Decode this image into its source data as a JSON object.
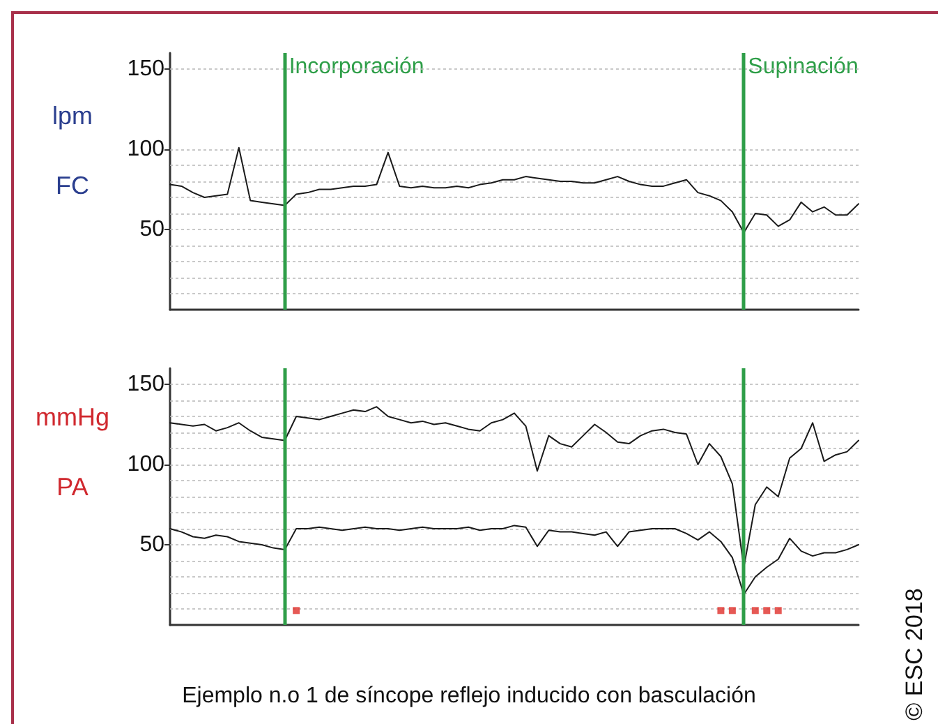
{
  "chart_data": [
    {
      "type": "line",
      "ylabel": "lpm\nFC",
      "ylim": [
        0,
        160
      ],
      "categories": [
        null,
        null,
        null,
        null,
        null,
        null,
        null,
        null,
        null,
        null,
        null,
        null,
        null,
        null,
        null,
        null,
        null,
        null,
        null,
        null,
        null,
        null,
        null,
        null,
        null,
        null,
        null,
        null,
        null,
        null,
        null,
        null,
        null,
        null,
        null,
        null,
        null,
        null,
        null,
        null,
        null,
        null,
        null,
        null,
        null,
        null,
        null,
        null,
        null,
        null,
        null,
        null,
        null,
        null,
        null,
        null,
        null,
        null,
        null,
        null,
        null
      ],
      "yticks": [
        {
          "value": 10,
          "label": null
        },
        {
          "value": 20,
          "label": null
        },
        {
          "value": 30,
          "label": null
        },
        {
          "value": 40,
          "label": null
        },
        50,
        {
          "value": 60,
          "label": null
        },
        {
          "value": 70,
          "label": null
        },
        {
          "value": 80,
          "label": null
        },
        {
          "value": 90,
          "label": null
        },
        100,
        150
      ],
      "grid": "y",
      "marker": "none",
      "line_style": "solid",
      "annotations": [
        "Incorporación",
        "Supinación"
      ],
      "series": [
        {
          "color": "#1a1a1a",
          "values": [
            78,
            77,
            73,
            70,
            71,
            72,
            101,
            68,
            67,
            66,
            65,
            72,
            73,
            75,
            75,
            76,
            77,
            77,
            78,
            98,
            77,
            76,
            77,
            76,
            76,
            77,
            76,
            78,
            79,
            81,
            81,
            83,
            82,
            81,
            80,
            80,
            79,
            79,
            81,
            83,
            80,
            78,
            77,
            77,
            79,
            81,
            73,
            71,
            68,
            61,
            48,
            60,
            59,
            52,
            56,
            67,
            61,
            64,
            59,
            59,
            66
          ]
        }
      ]
    },
    {
      "type": "line",
      "ylabel": "mmHg\nPA",
      "ylim": [
        0,
        160
      ],
      "categories": [
        null,
        null,
        null,
        null,
        null,
        null,
        null,
        null,
        null,
        null,
        null,
        null,
        null,
        null,
        null,
        null,
        null,
        null,
        null,
        null,
        null,
        null,
        null,
        null,
        null,
        null,
        null,
        null,
        null,
        null,
        null,
        null,
        null,
        null,
        null,
        null,
        null,
        null,
        null,
        null,
        null,
        null,
        null,
        null,
        null,
        null,
        null,
        null,
        null,
        null,
        null,
        null,
        null,
        null,
        null,
        null,
        null,
        null,
        null,
        null,
        null
      ],
      "yticks": [
        {
          "value": 10,
          "label": null
        },
        {
          "value": 20,
          "label": null
        },
        {
          "value": 30,
          "label": null
        },
        {
          "value": 40,
          "label": null
        },
        50,
        {
          "value": 60,
          "label": null
        },
        {
          "value": 70,
          "label": null
        },
        {
          "value": 80,
          "label": null
        },
        {
          "value": 90,
          "label": null
        },
        100,
        {
          "value": 110,
          "label": null
        },
        {
          "value": 120,
          "label": null
        },
        {
          "value": 130,
          "label": null
        },
        {
          "value": 140,
          "label": null
        },
        150
      ],
      "grid": "y",
      "marker": "none",
      "line_style": "solid",
      "annotations": [
        "Ejemplo n.o 1 de síncope reflejo inducido con basculación",
        "© ESC 2018"
      ],
      "series": [
        {
          "color": "#1a1a1a",
          "values": [
            126,
            125,
            124,
            125,
            121,
            123,
            126,
            121,
            117,
            116,
            115,
            130,
            129,
            128,
            130,
            132,
            134,
            133,
            136,
            130,
            128,
            126,
            127,
            125,
            126,
            124,
            122,
            121,
            126,
            128,
            132,
            124,
            96,
            118,
            113,
            111,
            118,
            125,
            120,
            114,
            113,
            118,
            121,
            122,
            120,
            119,
            100,
            113,
            105,
            88,
            36,
            75,
            86,
            80,
            104,
            110,
            126,
            102,
            106,
            108,
            115
          ]
        },
        {
          "color": "#1a1a1a",
          "values": [
            60,
            58,
            55,
            54,
            56,
            55,
            52,
            51,
            50,
            48,
            47,
            60,
            60,
            61,
            60,
            59,
            60,
            61,
            60,
            60,
            59,
            60,
            61,
            60,
            60,
            60,
            61,
            59,
            60,
            60,
            62,
            61,
            49,
            59,
            58,
            58,
            57,
            56,
            58,
            49,
            58,
            59,
            60,
            60,
            60,
            57,
            53,
            58,
            52,
            42,
            19,
            30,
            36,
            41,
            54,
            46,
            43,
            45,
            45,
            47,
            50
          ]
        },
        {
          "type": "scatter",
          "marker": "square",
          "color": "#e0302a",
          "values": [
            null,
            null,
            null,
            null,
            null,
            null,
            null,
            null,
            null,
            null,
            null,
            9,
            null,
            null,
            null,
            null,
            null,
            null,
            null,
            null,
            null,
            null,
            null,
            null,
            null,
            null,
            null,
            null,
            null,
            null,
            null,
            null,
            null,
            null,
            null,
            null,
            null,
            null,
            null,
            null,
            null,
            null,
            null,
            null,
            null,
            null,
            null,
            null,
            9,
            9,
            null,
            9,
            9,
            9,
            null,
            null,
            null,
            null,
            null,
            null,
            null
          ]
        }
      ]
    }
  ]
}
